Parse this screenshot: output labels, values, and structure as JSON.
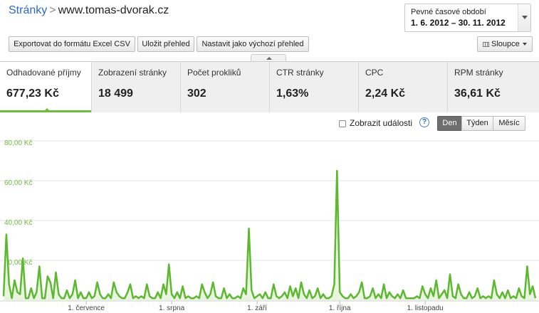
{
  "header": {
    "breadcrumb_link": "Stránky",
    "breadcrumb_sep": ">",
    "breadcrumb_current": "www.tomas-dvorak.cz"
  },
  "date_picker": {
    "label": "Pevné časové období",
    "range": "1. 6. 2012 – 30. 11. 2012"
  },
  "toolbar": {
    "export_label": "Exportovat do formátu Excel CSV",
    "save_label": "Uložit přehled",
    "default_label": "Nastavit jako výchozí přehled",
    "columns_label": "Sloupce"
  },
  "metrics": [
    {
      "label": "Odhadované příjmy",
      "value": "677,23 Kč"
    },
    {
      "label": "Zobrazení stránky",
      "value": "18 499"
    },
    {
      "label": "Počet prokliků",
      "value": "302"
    },
    {
      "label": "CTR stránky",
      "value": "1,63%"
    },
    {
      "label": "CPC",
      "value": "2,24 Kč"
    },
    {
      "label": "RPM stránky",
      "value": "36,61 Kč"
    }
  ],
  "controls": {
    "events_label": "Zobrazit události",
    "help": "?",
    "seg_day": "Den",
    "seg_week": "Týden",
    "seg_month": "Měsíc"
  },
  "colors": {
    "accent": "#6bbf3b",
    "line": "#5cb82f",
    "fill": "#e9f5df",
    "link": "#2a6bbf"
  },
  "chart_data": {
    "type": "area",
    "series": [
      {
        "values": [
          2,
          33,
          8,
          1,
          10,
          4,
          3,
          21,
          1,
          1,
          6,
          1,
          4,
          17,
          1,
          1,
          12,
          9,
          1,
          14,
          3,
          1,
          1,
          5,
          1,
          3,
          10,
          1,
          4,
          1,
          1,
          4,
          1,
          2,
          9,
          3,
          1,
          1,
          3,
          1,
          9,
          4,
          2,
          1,
          1,
          4,
          8,
          1,
          2,
          1,
          2,
          1,
          8,
          2,
          1,
          1,
          4,
          1,
          8,
          3,
          18,
          3,
          1,
          4,
          1,
          7,
          1,
          2,
          1,
          1,
          2,
          1,
          8,
          4,
          1,
          3,
          9,
          2,
          1,
          1,
          6,
          1,
          3,
          1,
          1,
          2,
          1,
          6,
          3,
          36,
          5,
          1,
          2,
          3,
          1,
          4,
          1,
          1,
          8,
          2,
          1,
          2,
          4,
          1,
          7,
          2,
          6,
          1,
          9,
          3,
          1,
          5,
          1,
          2,
          6,
          1,
          3,
          1,
          1,
          2,
          8,
          65,
          4,
          2,
          1,
          1,
          3,
          1,
          2,
          4,
          9,
          1,
          1,
          2,
          6,
          1,
          3,
          1,
          8,
          1,
          4,
          2,
          1,
          3,
          1,
          5,
          1,
          1,
          1,
          1,
          2,
          1,
          7,
          3,
          1,
          6,
          2,
          10,
          1,
          3,
          5,
          1,
          13,
          2,
          1,
          8,
          3,
          1,
          1,
          4,
          1,
          2,
          6,
          1,
          2,
          1,
          2,
          1,
          10,
          3,
          1,
          4,
          1,
          5,
          1,
          2,
          1,
          6,
          2,
          1,
          17,
          3,
          7,
          1
        ]
      }
    ],
    "ylim": [
      0,
      80
    ],
    "y_ticks": [
      "80,00 Kč",
      "60,00 Kč",
      "40,00 Kč",
      "20,00 Kč"
    ],
    "x_labels": [
      "1. července",
      "1. srpna",
      "1. září",
      "1. října",
      "1. listopadu"
    ],
    "grid": true
  }
}
